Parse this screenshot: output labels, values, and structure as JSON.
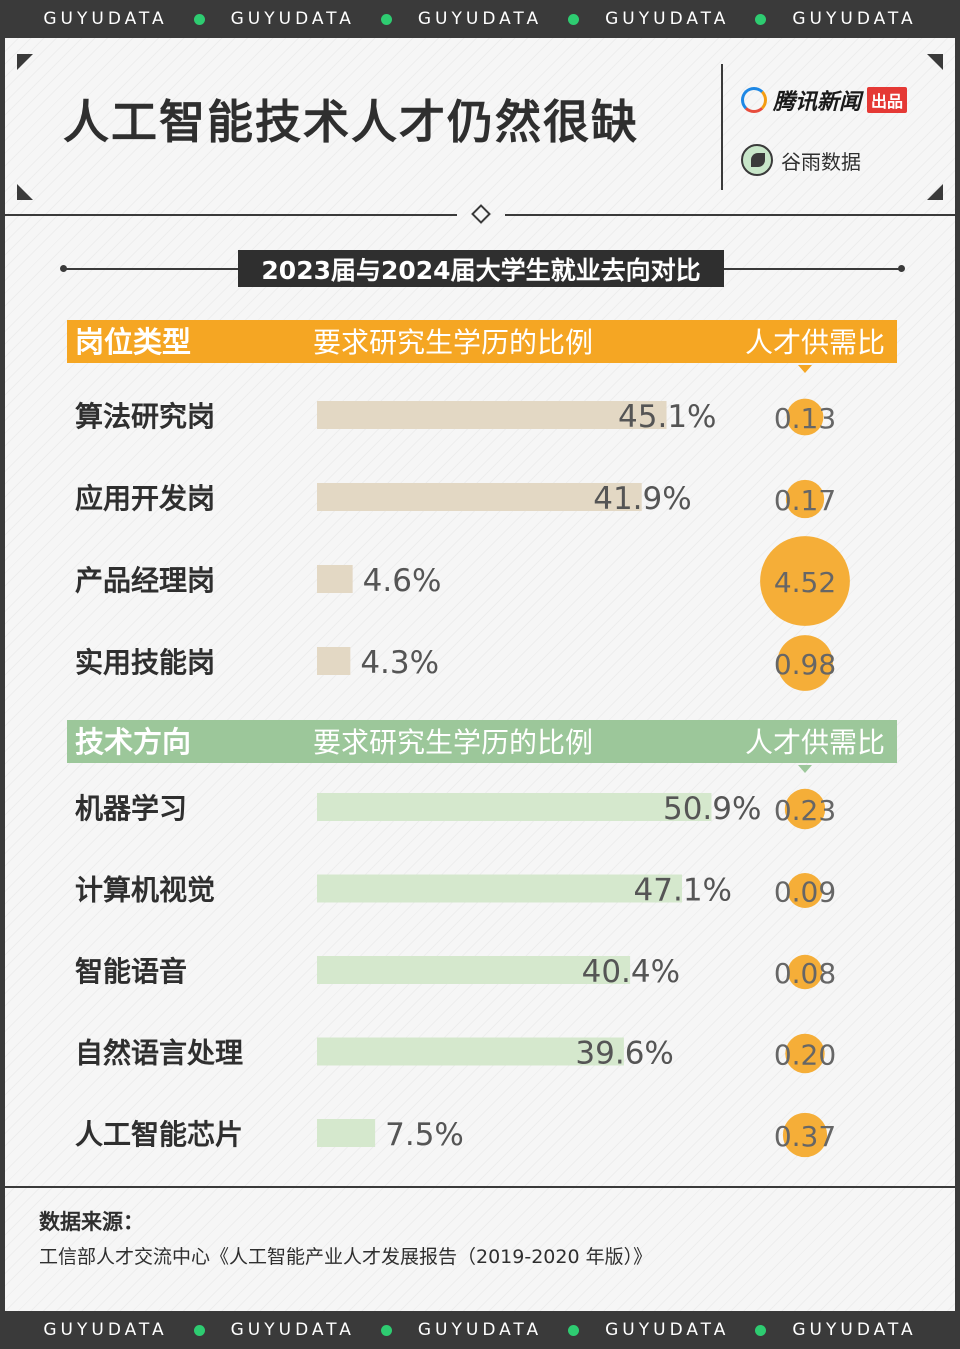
{
  "banner": {
    "items": [
      "GUYUDATA",
      "GUYUDATA",
      "GUYUDATA",
      "GUYUDATA",
      "GUYUDATA"
    ],
    "dot_color": "#2ecc71"
  },
  "header": {
    "title": "人工智能技术人才仍然很缺",
    "logo_tencent": "腾讯新闻",
    "logo_tencent_badge": "出品",
    "logo_guyu": "谷雨数据"
  },
  "subtitle": "2023届与2024届大学生就业去向对比",
  "colors": {
    "orange": "#f5a623",
    "green": "#9cc79a",
    "beige_bar": "#e3d8c4",
    "green_bar": "#d5e8cd",
    "text": "#2f2f2f"
  },
  "chart_data": [
    {
      "type": "bar",
      "header": {
        "category": "岗位类型",
        "value": "要求研究生学历的比例",
        "ratio": "人才供需比"
      },
      "categories": [
        "算法研究岗",
        "应用开发岗",
        "产品经理岗",
        "实用技能岗"
      ],
      "values": [
        45.1,
        41.9,
        4.6,
        4.3
      ],
      "value_labels": [
        "45.1%",
        "41.9%",
        "4.6%",
        "4.3%"
      ],
      "ratios": [
        0.13,
        0.17,
        4.52,
        0.98
      ],
      "ratio_labels": [
        "0.13",
        "0.17",
        "4.52",
        "0.98"
      ],
      "xlim": [
        0,
        60
      ]
    },
    {
      "type": "bar",
      "header": {
        "category": "技术方向",
        "value": "要求研究生学历的比例",
        "ratio": "人才供需比"
      },
      "categories": [
        "机器学习",
        "计算机视觉",
        "智能语音",
        "自然语言处理",
        "人工智能芯片"
      ],
      "values": [
        50.9,
        47.1,
        40.4,
        39.6,
        7.5
      ],
      "value_labels": [
        "50.9%",
        "47.1%",
        "40.4%",
        "39.6%",
        "7.5%"
      ],
      "ratios": [
        0.23,
        0.09,
        0.08,
        0.2,
        0.37
      ],
      "ratio_labels": [
        "0.23",
        "0.09",
        "0.08",
        "0.20",
        "0.37"
      ],
      "xlim": [
        0,
        60
      ]
    }
  ],
  "source": {
    "label": "数据来源：",
    "text": "工信部人才交流中心《人工智能产业人才发展报告（2019-2020 年版）》"
  }
}
